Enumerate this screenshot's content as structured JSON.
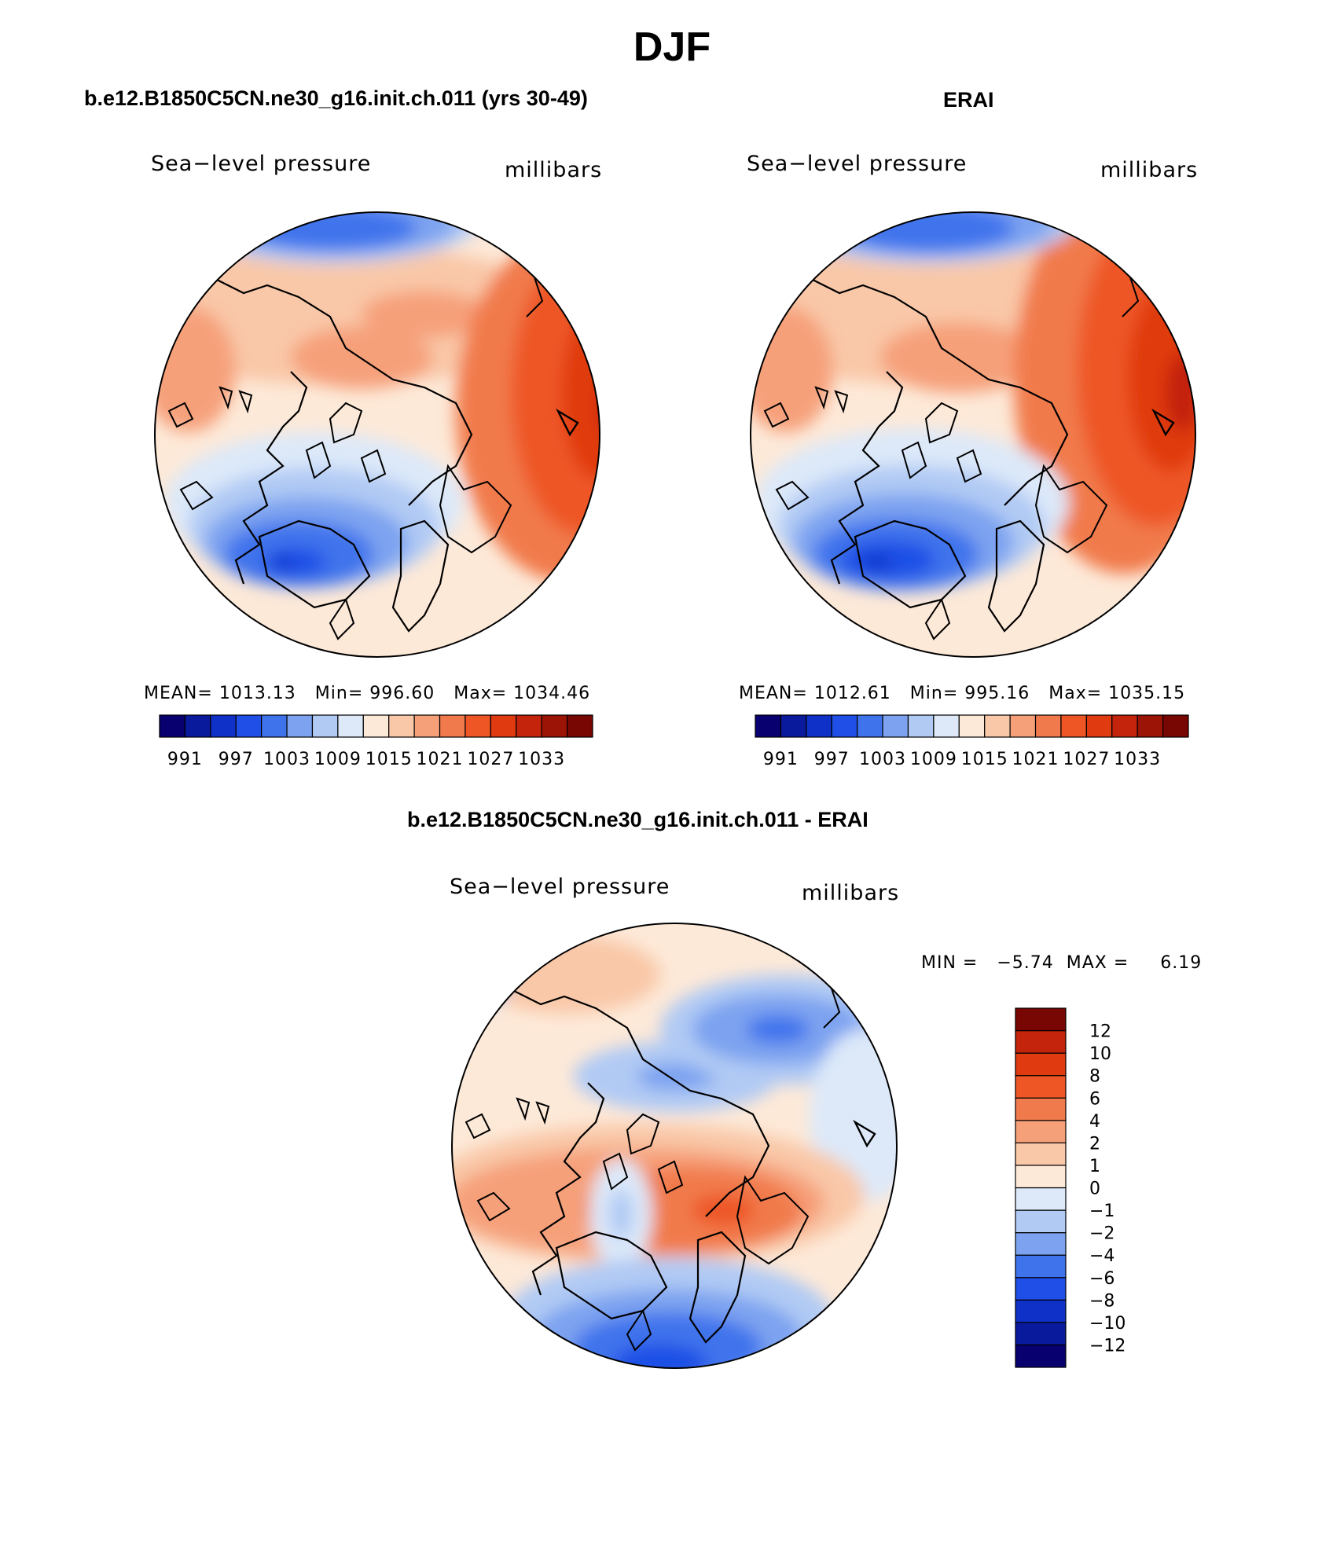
{
  "main_title": "DJF",
  "panels": [
    {
      "title": "b.e12.B1850C5CN.ne30_g16.init.ch.011 (yrs 30-49)",
      "variable": "Sea−level pressure",
      "units": "millibars",
      "stats": {
        "mean_label": "MEAN=",
        "mean": "1013.13",
        "min_label": "Min=",
        "min": "996.60",
        "max_label": "Max=",
        "max": "1034.46"
      }
    },
    {
      "title": "ERAI",
      "variable": "Sea−level pressure",
      "units": "millibars",
      "stats": {
        "mean_label": "MEAN=",
        "mean": "1012.61",
        "min_label": "Min=",
        "min": "995.16",
        "max_label": "Max=",
        "max": "1035.15"
      }
    },
    {
      "title": "b.e12.B1850C5CN.ne30_g16.init.ch.011 - ERAI",
      "variable": "Sea−level pressure",
      "units": "millibars",
      "stats": {
        "min_label": "MIN =",
        "min": "−5.74",
        "max_label": "MAX =",
        "max": "6.19"
      }
    }
  ],
  "abs_colorbar": {
    "colors": [
      "#07006e",
      "#0a1a9c",
      "#0f31c7",
      "#1f4fe6",
      "#3f73ec",
      "#7da3f0",
      "#b1caf4",
      "#dde9f9",
      "#fde9d8",
      "#f9c8a8",
      "#f6a07a",
      "#f17a4c",
      "#ee5625",
      "#e03a10",
      "#c3240b",
      "#9c1406",
      "#780603"
    ],
    "labels": [
      "991",
      "997",
      "1003",
      "1009",
      "1015",
      "1021",
      "1027",
      "1033"
    ]
  },
  "diff_colorbar": {
    "colors": [
      "#07006e",
      "#0a1a9c",
      "#0f31c7",
      "#1f4fe6",
      "#3f73ec",
      "#7da3f0",
      "#b1caf4",
      "#dde9f9",
      "#fde9d8",
      "#f9c8a8",
      "#f6a07a",
      "#f17a4c",
      "#ee5625",
      "#e03a10",
      "#c3240b",
      "#780603"
    ],
    "labels": [
      "−12",
      "−10",
      "−8",
      "−6",
      "−4",
      "−2",
      "−1",
      "0",
      "1",
      "2",
      "4",
      "6",
      "8",
      "10",
      "12"
    ]
  },
  "field_colors": {
    "deep_blue": "#1f4fe6",
    "mid_blue": "#3f73ec",
    "light_blue": "#7da3f0",
    "pale_blue": "#b1caf4",
    "ice_blue": "#dde9f9",
    "cream": "#fde9d8",
    "peach": "#f9c8a8",
    "salmon": "#f6a07a",
    "orange": "#f17a4c",
    "red_orange": "#ee5625",
    "red": "#e03a10",
    "dark_red": "#c3240b",
    "maroon": "#9c1406",
    "navy": "#0f31c7"
  }
}
